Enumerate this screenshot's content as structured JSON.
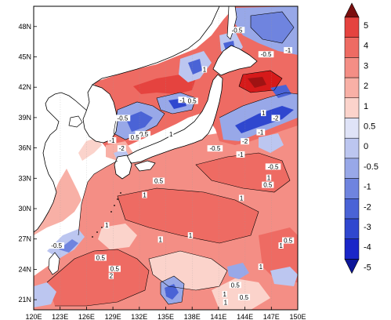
{
  "map": {
    "type": "contour-map",
    "lon_ticks": [
      "120E",
      "123E",
      "126E",
      "129E",
      "132E",
      "135E",
      "138E",
      "141E",
      "144E",
      "147E",
      "150E"
    ],
    "lat_ticks": [
      "48N",
      "45N",
      "42N",
      "39N",
      "36N",
      "33N",
      "30N",
      "27N",
      "24N",
      "21N"
    ],
    "lon_range": [
      120,
      150
    ],
    "lat_range": [
      20,
      50
    ],
    "grid": true,
    "contour_labels": [
      {
        "text": "-0.5",
        "lon": 130.1,
        "lat": 38.8
      },
      {
        "text": "-1",
        "lon": 128.9,
        "lat": 36.6
      },
      {
        "text": "-2",
        "lon": 130.0,
        "lat": 35.8
      },
      {
        "text": "-0.5",
        "lon": 132.4,
        "lat": 37.2
      },
      {
        "text": "0.5",
        "lon": 131.5,
        "lat": 36.9
      },
      {
        "text": "1",
        "lon": 135.6,
        "lat": 37.2
      },
      {
        "text": "-1",
        "lon": 136.9,
        "lat": 40.6
      },
      {
        "text": "0.5",
        "lon": 138.0,
        "lat": 40.5
      },
      {
        "text": "1",
        "lon": 139.4,
        "lat": 43.6
      },
      {
        "text": "-0.5",
        "lon": 143.1,
        "lat": 47.5
      },
      {
        "text": "-0.5",
        "lon": 146.4,
        "lat": 45.1
      },
      {
        "text": "-1",
        "lon": 148.9,
        "lat": 45.5
      },
      {
        "text": "1",
        "lon": 146.1,
        "lat": 39.3
      },
      {
        "text": "-2",
        "lon": 147.5,
        "lat": 38.8
      },
      {
        "text": "-1",
        "lon": 145.8,
        "lat": 37.4
      },
      {
        "text": "-0.5",
        "lon": 140.6,
        "lat": 35.8
      },
      {
        "text": "-2",
        "lon": 144.0,
        "lat": 36.5
      },
      {
        "text": "-1",
        "lon": 143.5,
        "lat": 35.2
      },
      {
        "text": "-0.5",
        "lon": 147.2,
        "lat": 34.0
      },
      {
        "text": "1",
        "lon": 146.7,
        "lat": 32.9
      },
      {
        "text": "0.5",
        "lon": 146.6,
        "lat": 32.2
      },
      {
        "text": "1",
        "lon": 143.6,
        "lat": 30.9
      },
      {
        "text": "0.5",
        "lon": 134.2,
        "lat": 32.6
      },
      {
        "text": "1",
        "lon": 132.6,
        "lat": 31.2
      },
      {
        "text": "1",
        "lon": 137.8,
        "lat": 27.2
      },
      {
        "text": "1",
        "lon": 134.4,
        "lat": 26.8
      },
      {
        "text": "1",
        "lon": 128.3,
        "lat": 28.2
      },
      {
        "text": "-0.5",
        "lon": 122.6,
        "lat": 26.2
      },
      {
        "text": "0.5",
        "lon": 127.6,
        "lat": 25.0
      },
      {
        "text": "0.5",
        "lon": 129.2,
        "lat": 23.9
      },
      {
        "text": "2",
        "lon": 128.8,
        "lat": 23.2
      },
      {
        "text": "0.5",
        "lon": 148.9,
        "lat": 26.7
      },
      {
        "text": "1",
        "lon": 148.1,
        "lat": 26.2
      },
      {
        "text": "0.5",
        "lon": 142.9,
        "lat": 22.3
      },
      {
        "text": "1",
        "lon": 141.7,
        "lat": 21.4
      },
      {
        "text": "0.5",
        "lon": 143.9,
        "lat": 21.1
      },
      {
        "text": "1",
        "lon": 141.8,
        "lat": 20.6
      },
      {
        "text": "1",
        "lon": 145.8,
        "lat": 24.1
      }
    ]
  },
  "colorbar": {
    "labels": [
      "5",
      "4",
      "3",
      "2",
      "1",
      "0.5",
      "0",
      "-0.5",
      "-1",
      "-2",
      "-3",
      "-4",
      "-5"
    ],
    "colors": [
      "#d61a1a",
      "#e5433f",
      "#ee6b63",
      "#f48e85",
      "#f8b0a6",
      "#fbd3cb",
      "#dfe3f7",
      "#bcc6f0",
      "#98a8e8",
      "#6f84df",
      "#4a63d6",
      "#2f47cf",
      "#1a26c8"
    ],
    "tip_top_color": "#7a0f0f",
    "tip_bottom_color": "#0d1699"
  }
}
